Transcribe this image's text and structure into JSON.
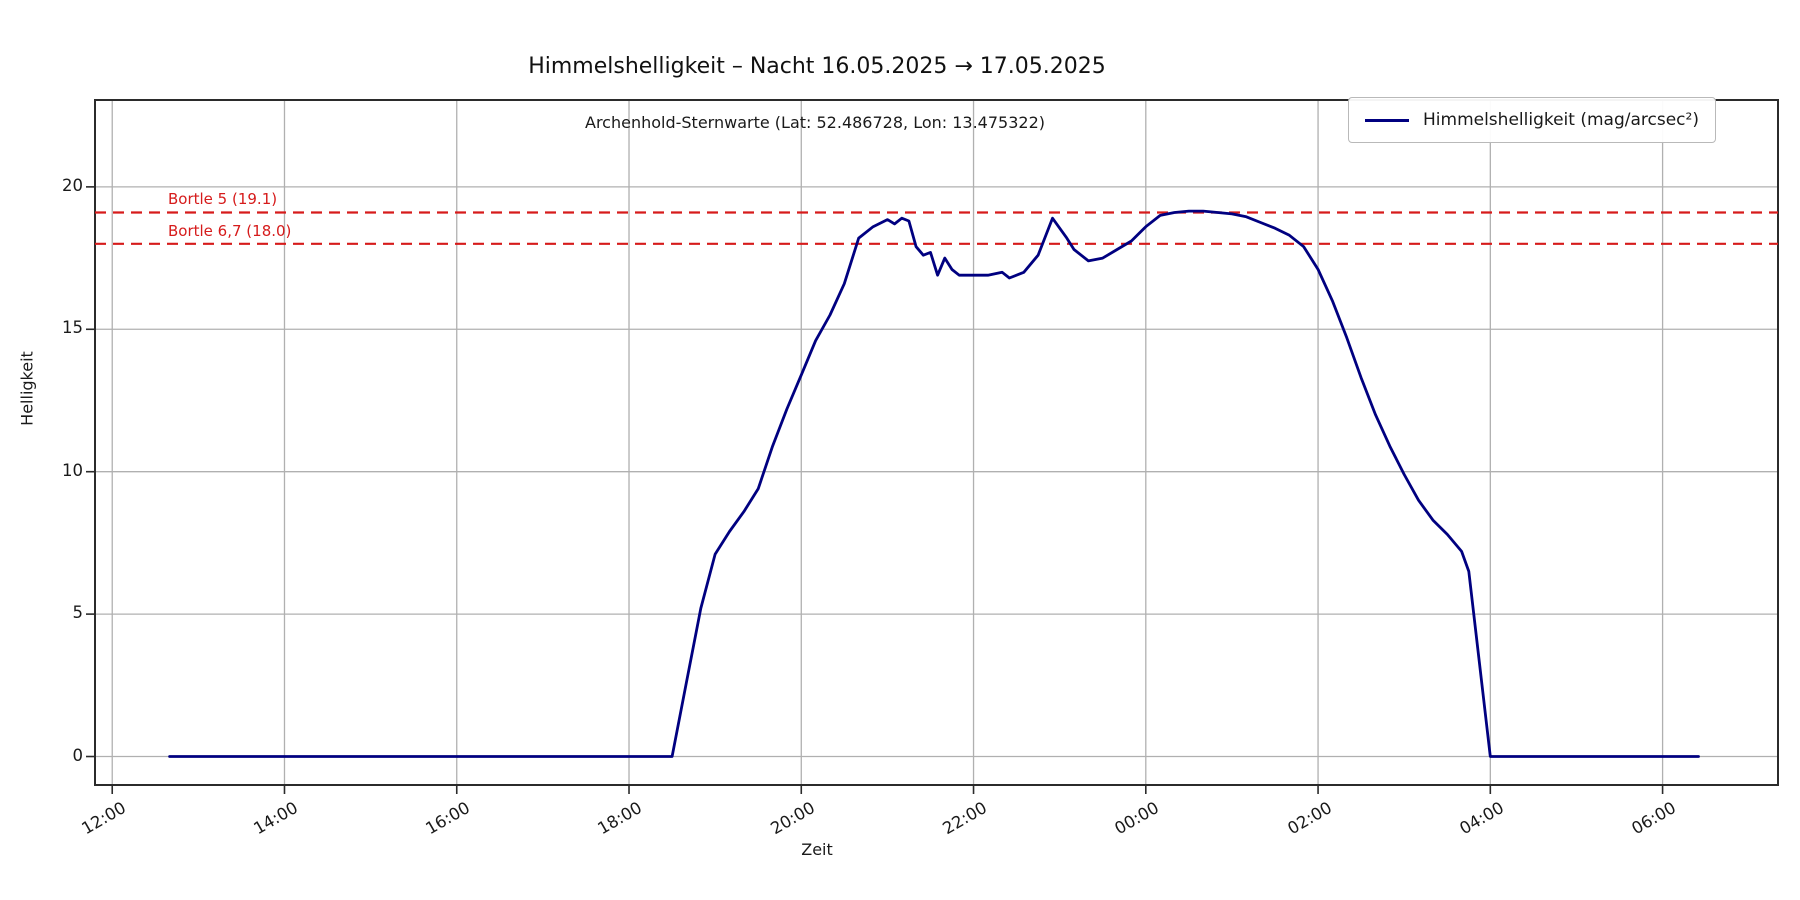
{
  "title": "Himmelshelligkeit – Nacht 16.05.2025 → 17.05.2025",
  "subtitle": "Archenhold-Sternwarte (Lat: 52.486728, Lon: 13.475322)",
  "legend": {
    "label": "Himmelshelligkeit (mag/arcsec²)",
    "position": "upper right"
  },
  "axes": {
    "x_label": "Zeit",
    "y_label": "Helligkeit"
  },
  "colors": {
    "line": "#000080",
    "reference": "#d61b1b",
    "grid": "#b0b0b0",
    "spine": "#2b2b2b",
    "text": "#1a1a1a"
  },
  "chart_data": {
    "type": "line",
    "title": "Himmelshelligkeit – Nacht 16.05.2025 → 17.05.2025",
    "subtitle": "Archenhold-Sternwarte (Lat: 52.486728, Lon: 13.475322)",
    "xlabel": "Zeit",
    "ylabel": "Helligkeit",
    "grid": true,
    "legend_position": "upper right",
    "x_ticks": [
      "12:00",
      "14:00",
      "16:00",
      "18:00",
      "20:00",
      "22:00",
      "00:00",
      "02:00",
      "04:00",
      "06:00"
    ],
    "y_ticks": [
      0,
      5,
      10,
      15,
      20
    ],
    "xlim": [
      "11:48",
      "07:20"
    ],
    "ylim": [
      -1,
      23.05
    ],
    "reference_lines": [
      {
        "label": "Bortle 5 (19.1)",
        "value": 19.1
      },
      {
        "label": "Bortle 6,7 (18.0)",
        "value": 18.0
      }
    ],
    "series": [
      {
        "name": "Himmelshelligkeit (mag/arcsec²)",
        "color": "#000080",
        "unit": "mag/arcsec²",
        "points": [
          [
            "12:40",
            0
          ],
          [
            "13:00",
            0
          ],
          [
            "13:30",
            0
          ],
          [
            "14:00",
            0
          ],
          [
            "14:30",
            0
          ],
          [
            "15:00",
            0
          ],
          [
            "15:30",
            0
          ],
          [
            "16:00",
            0
          ],
          [
            "16:30",
            0
          ],
          [
            "17:00",
            0
          ],
          [
            "17:30",
            0
          ],
          [
            "18:00",
            0
          ],
          [
            "18:30",
            0
          ],
          [
            "18:40",
            2.6
          ],
          [
            "18:50",
            5.2
          ],
          [
            "19:00",
            7.1
          ],
          [
            "19:10",
            7.9
          ],
          [
            "19:20",
            8.6
          ],
          [
            "19:30",
            9.4
          ],
          [
            "19:40",
            10.9
          ],
          [
            "19:50",
            12.2
          ],
          [
            "20:00",
            13.4
          ],
          [
            "20:10",
            14.6
          ],
          [
            "20:20",
            15.5
          ],
          [
            "20:30",
            16.6
          ],
          [
            "20:40",
            18.2
          ],
          [
            "20:50",
            18.6
          ],
          [
            "21:00",
            18.85
          ],
          [
            "21:05",
            18.7
          ],
          [
            "21:10",
            18.9
          ],
          [
            "21:15",
            18.8
          ],
          [
            "21:20",
            17.9
          ],
          [
            "21:25",
            17.6
          ],
          [
            "21:30",
            17.7
          ],
          [
            "21:35",
            16.9
          ],
          [
            "21:40",
            17.5
          ],
          [
            "21:45",
            17.1
          ],
          [
            "21:50",
            16.9
          ],
          [
            "22:00",
            16.9
          ],
          [
            "22:10",
            16.9
          ],
          [
            "22:20",
            17.0
          ],
          [
            "22:25",
            16.8
          ],
          [
            "22:35",
            17.0
          ],
          [
            "22:45",
            17.6
          ],
          [
            "22:55",
            18.9
          ],
          [
            "23:05",
            18.2
          ],
          [
            "23:10",
            17.8
          ],
          [
            "23:20",
            17.4
          ],
          [
            "23:30",
            17.5
          ],
          [
            "23:40",
            17.8
          ],
          [
            "23:50",
            18.1
          ],
          [
            "00:00",
            18.6
          ],
          [
            "00:10",
            19.0
          ],
          [
            "00:20",
            19.1
          ],
          [
            "00:30",
            19.15
          ],
          [
            "00:40",
            19.15
          ],
          [
            "00:50",
            19.1
          ],
          [
            "01:00",
            19.05
          ],
          [
            "01:10",
            18.95
          ],
          [
            "01:20",
            18.75
          ],
          [
            "01:30",
            18.55
          ],
          [
            "01:40",
            18.3
          ],
          [
            "01:50",
            17.9
          ],
          [
            "02:00",
            17.1
          ],
          [
            "02:10",
            16.0
          ],
          [
            "02:20",
            14.7
          ],
          [
            "02:30",
            13.3
          ],
          [
            "02:40",
            12.0
          ],
          [
            "02:50",
            10.9
          ],
          [
            "03:00",
            9.9
          ],
          [
            "03:10",
            9.0
          ],
          [
            "03:20",
            8.3
          ],
          [
            "03:30",
            7.8
          ],
          [
            "03:40",
            7.2
          ],
          [
            "03:45",
            6.5
          ],
          [
            "04:00",
            0
          ],
          [
            "04:30",
            0
          ],
          [
            "05:00",
            0
          ],
          [
            "05:30",
            0
          ],
          [
            "06:00",
            0
          ],
          [
            "06:25",
            0
          ]
        ]
      }
    ]
  }
}
